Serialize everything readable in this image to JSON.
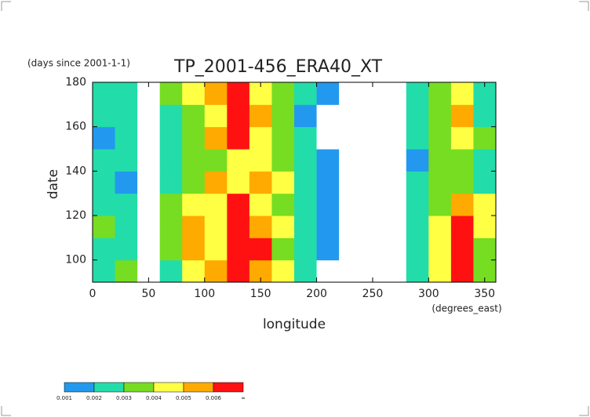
{
  "chart_data": {
    "type": "heatmap",
    "subtitle": "(days since 2001-1-1)",
    "title": "TP_2001-456_ERA40_XT",
    "xlabel": "longitude",
    "xunit": "(degrees_east)",
    "ylabel": "date",
    "xlim": [
      0,
      360
    ],
    "ylim": [
      90,
      180
    ],
    "xticks": [
      0,
      50,
      100,
      150,
      200,
      250,
      300,
      350
    ],
    "yticks": [
      100,
      120,
      140,
      160,
      180
    ],
    "x": [
      10,
      30,
      50,
      70,
      90,
      110,
      130,
      150,
      170,
      190,
      210,
      230,
      250,
      270,
      290,
      310,
      330,
      350
    ],
    "y": [
      95,
      105,
      115,
      125,
      135,
      145,
      155,
      165,
      175
    ],
    "values": [
      [
        0.002,
        0.003,
        0.0005,
        0.002,
        0.004,
        0.005,
        0.006,
        0.005,
        0.004,
        0.002,
        0.0008,
        0.0005,
        0.0005,
        0.0005,
        0.002,
        0.004,
        0.007,
        0.003
      ],
      [
        0.002,
        0.0025,
        0.0008,
        0.003,
        0.005,
        0.004,
        0.006,
        0.006,
        0.003,
        0.002,
        0.001,
        0.0005,
        0.0005,
        0.0005,
        0.0025,
        0.0045,
        0.0065,
        0.003
      ],
      [
        0.003,
        0.002,
        0.0005,
        0.0035,
        0.0055,
        0.004,
        0.0065,
        0.005,
        0.004,
        0.0025,
        0.0015,
        0.0005,
        0.0005,
        0.0005,
        0.002,
        0.004,
        0.007,
        0.004
      ],
      [
        0.002,
        0.002,
        0.0005,
        0.003,
        0.004,
        0.0045,
        0.006,
        0.0045,
        0.003,
        0.002,
        0.001,
        0.0005,
        0.0005,
        0.0005,
        0.0025,
        0.0035,
        0.005,
        0.0045
      ],
      [
        0.0025,
        0.0015,
        0.0005,
        0.0025,
        0.003,
        0.005,
        0.004,
        0.005,
        0.004,
        0.0025,
        0.0015,
        0.0008,
        0.0005,
        0.0005,
        0.002,
        0.003,
        0.0035,
        0.0025
      ],
      [
        0.002,
        0.002,
        0.0008,
        0.0025,
        0.003,
        0.0035,
        0.0045,
        0.004,
        0.0035,
        0.0025,
        0.0015,
        0.0005,
        0.0005,
        0.0005,
        0.0015,
        0.003,
        0.003,
        0.002
      ],
      [
        0.0015,
        0.0025,
        0.0005,
        0.002,
        0.0035,
        0.005,
        0.006,
        0.004,
        0.003,
        0.002,
        0.0008,
        0.0005,
        0.0005,
        0.0005,
        0.002,
        0.0035,
        0.004,
        0.0035
      ],
      [
        0.002,
        0.002,
        0.0005,
        0.0025,
        0.0035,
        0.004,
        0.0065,
        0.005,
        0.0035,
        0.0015,
        0.0005,
        0.0005,
        0.0005,
        0.0005,
        0.0025,
        0.003,
        0.005,
        0.0025
      ],
      [
        0.002,
        0.0025,
        0.0005,
        0.003,
        0.004,
        0.005,
        0.0065,
        0.0045,
        0.003,
        0.002,
        0.001,
        0.0005,
        0.0005,
        0.0005,
        0.002,
        0.0035,
        0.004,
        0.002
      ]
    ],
    "colorbar": {
      "levels": [
        0.001,
        0.002,
        0.003,
        0.004,
        0.005,
        0.006
      ],
      "top_label": "∞",
      "colors": [
        "#2299ee",
        "#22ddaa",
        "#77dd22",
        "#ffff44",
        "#ffaa00",
        "#ff1111"
      ]
    }
  }
}
